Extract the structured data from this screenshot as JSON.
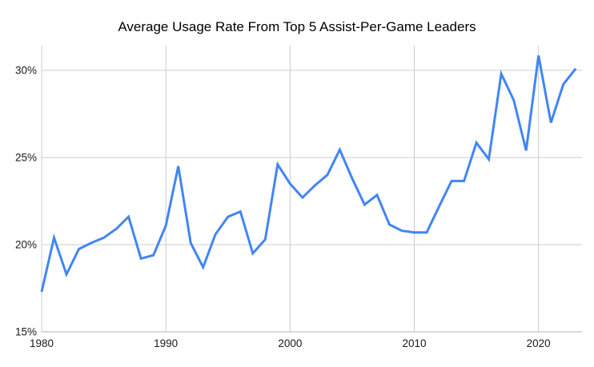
{
  "title": "Average Usage Rate From Top 5 Assist-Per-Game Leaders",
  "colors": {
    "line": "#4285f4",
    "gridline": "#cccccc",
    "axis_line": "#b3b3b3",
    "label": "#1a1a1a",
    "title": "#000000",
    "background": "#ffffff"
  },
  "chart_data": {
    "type": "line",
    "title": "Average Usage Rate From Top 5 Assist-Per-Game Leaders",
    "xlabel": "",
    "ylabel": "",
    "legend": "none",
    "grid": true,
    "xlim": [
      1980,
      2023
    ],
    "ylim": [
      15,
      30
    ],
    "x_ticks": [
      1980,
      1990,
      2000,
      2010,
      2020
    ],
    "y_ticks": [
      15,
      20,
      25,
      30
    ],
    "y_tick_suffix": "%",
    "x": [
      1980,
      1981,
      1982,
      1983,
      1984,
      1985,
      1986,
      1987,
      1988,
      1989,
      1990,
      1991,
      1992,
      1993,
      1994,
      1995,
      1996,
      1997,
      1998,
      1999,
      2000,
      2001,
      2002,
      2003,
      2004,
      2005,
      2006,
      2007,
      2008,
      2009,
      2010,
      2011,
      2012,
      2013,
      2014,
      2015,
      2016,
      2017,
      2018,
      2019,
      2020,
      2021,
      2022,
      2023
    ],
    "series": [
      {
        "name": "Average Usage Rate",
        "values": [
          17.3,
          20.4,
          18.3,
          19.75,
          20.1,
          20.4,
          20.9,
          21.6,
          19.2,
          19.4,
          21.1,
          24.5,
          20.1,
          18.7,
          20.6,
          21.6,
          21.9,
          19.5,
          20.3,
          24.6,
          23.5,
          22.7,
          23.4,
          24.0,
          25.45,
          23.8,
          22.3,
          22.85,
          21.15,
          20.8,
          20.7,
          20.7,
          22.2,
          23.65,
          23.65,
          25.85,
          24.9,
          29.8,
          28.3,
          25.4,
          30.85,
          27.0,
          29.2,
          30.1
        ]
      }
    ]
  }
}
